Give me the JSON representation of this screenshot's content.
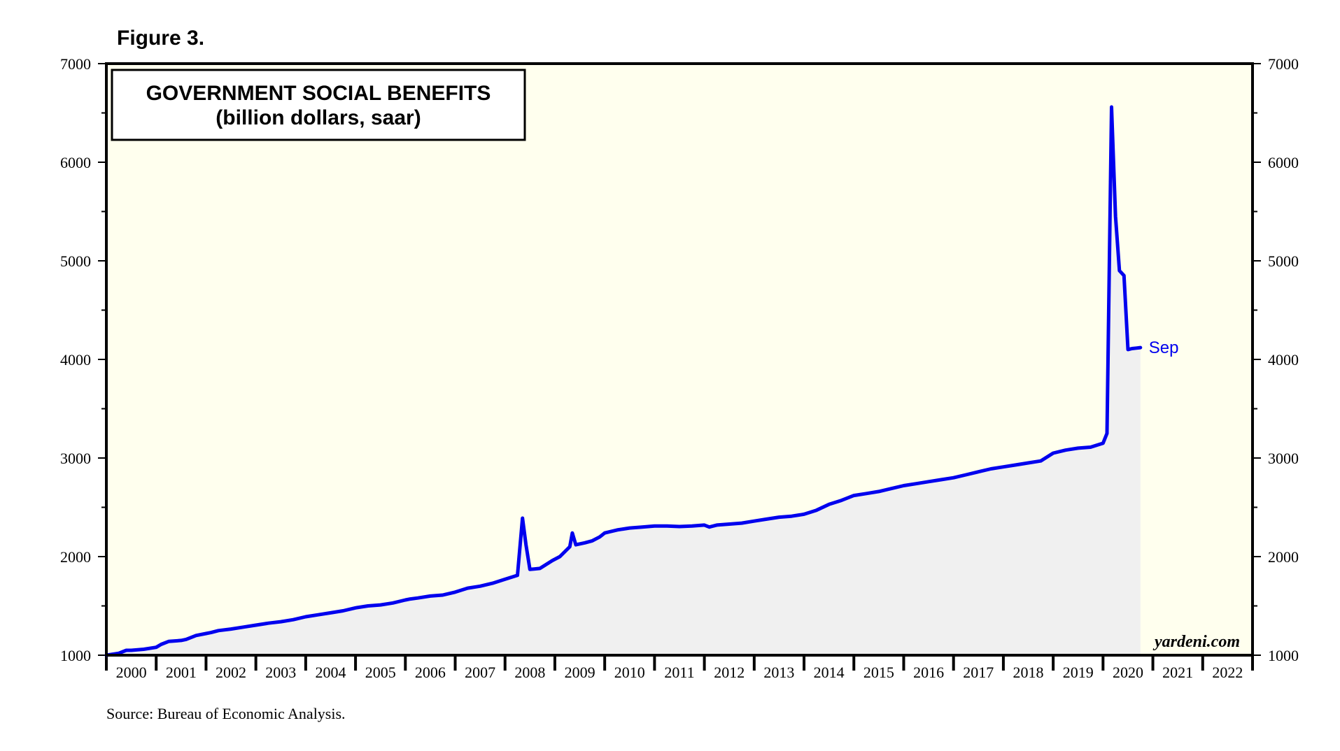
{
  "figure_label": "Figure 3.",
  "source": "Source: Bureau of Economic Analysis.",
  "watermark": "yardeni.com",
  "colors": {
    "plot_background": "#ffffee",
    "series_line": "#0000ee",
    "area_fill": "#f0f0f0",
    "frame": "#000000"
  },
  "chart_data": {
    "type": "line",
    "title": "GOVERNMENT SOCIAL BENEFITS",
    "subtitle": "(billion dollars, saar)",
    "xlabel": "",
    "ylabel": "",
    "ylim": [
      1000,
      7000
    ],
    "xlim": [
      2000,
      2023
    ],
    "y_ticks": [
      "1000",
      "2000",
      "3000",
      "4000",
      "5000",
      "6000",
      "7000"
    ],
    "x_tick_labels": [
      "2000",
      "2001",
      "2002",
      "2003",
      "2004",
      "2005",
      "2006",
      "2007",
      "2008",
      "2009",
      "2010",
      "2011",
      "2012",
      "2013",
      "2014",
      "2015",
      "2016",
      "2017",
      "2018",
      "2019",
      "2020",
      "2021",
      "2022"
    ],
    "grid": false,
    "legend": "none",
    "end_label": "Sep",
    "series": [
      {
        "name": "Government social benefits",
        "x": [
          2000.0,
          2000.25,
          2000.4,
          2000.5,
          2000.75,
          2001.0,
          2001.1,
          2001.25,
          2001.5,
          2001.6,
          2001.8,
          2002.0,
          2002.1,
          2002.25,
          2002.5,
          2002.75,
          2003.0,
          2003.25,
          2003.5,
          2003.75,
          2004.0,
          2004.25,
          2004.5,
          2004.75,
          2005.0,
          2005.25,
          2005.5,
          2005.75,
          2006.0,
          2006.1,
          2006.25,
          2006.5,
          2006.75,
          2007.0,
          2007.25,
          2007.5,
          2007.75,
          2008.0,
          2008.25,
          2008.35,
          2008.42,
          2008.5,
          2008.7,
          2008.95,
          2009.1,
          2009.3,
          2009.35,
          2009.42,
          2009.6,
          2009.75,
          2009.9,
          2010.0,
          2010.25,
          2010.5,
          2010.75,
          2011.0,
          2011.25,
          2011.5,
          2011.75,
          2012.0,
          2012.1,
          2012.25,
          2012.5,
          2012.75,
          2013.0,
          2013.25,
          2013.5,
          2013.75,
          2014.0,
          2014.25,
          2014.5,
          2014.75,
          2015.0,
          2015.25,
          2015.5,
          2015.75,
          2016.0,
          2016.25,
          2016.5,
          2016.75,
          2017.0,
          2017.25,
          2017.5,
          2017.75,
          2018.0,
          2018.25,
          2018.5,
          2018.75,
          2019.0,
          2019.25,
          2019.5,
          2019.75,
          2020.0,
          2020.08,
          2020.17,
          2020.25,
          2020.33,
          2020.42,
          2020.5,
          2020.58,
          2020.67,
          2020.75
        ],
        "values": [
          1000,
          1020,
          1050,
          1050,
          1060,
          1080,
          1110,
          1140,
          1150,
          1160,
          1200,
          1220,
          1230,
          1250,
          1265,
          1285,
          1305,
          1325,
          1340,
          1360,
          1390,
          1410,
          1430,
          1450,
          1480,
          1500,
          1510,
          1530,
          1560,
          1570,
          1580,
          1600,
          1610,
          1640,
          1680,
          1700,
          1730,
          1770,
          1810,
          2390,
          2120,
          1870,
          1880,
          1960,
          2000,
          2100,
          2240,
          2120,
          2140,
          2160,
          2200,
          2240,
          2270,
          2290,
          2300,
          2310,
          2310,
          2305,
          2310,
          2320,
          2300,
          2320,
          2330,
          2340,
          2360,
          2380,
          2400,
          2410,
          2430,
          2470,
          2530,
          2570,
          2620,
          2640,
          2660,
          2690,
          2720,
          2740,
          2760,
          2780,
          2800,
          2830,
          2860,
          2890,
          2910,
          2930,
          2950,
          2970,
          3050,
          3080,
          3100,
          3110,
          3150,
          3250,
          6560,
          5450,
          4900,
          4850,
          4100,
          4110,
          4115,
          4120
        ]
      }
    ]
  }
}
